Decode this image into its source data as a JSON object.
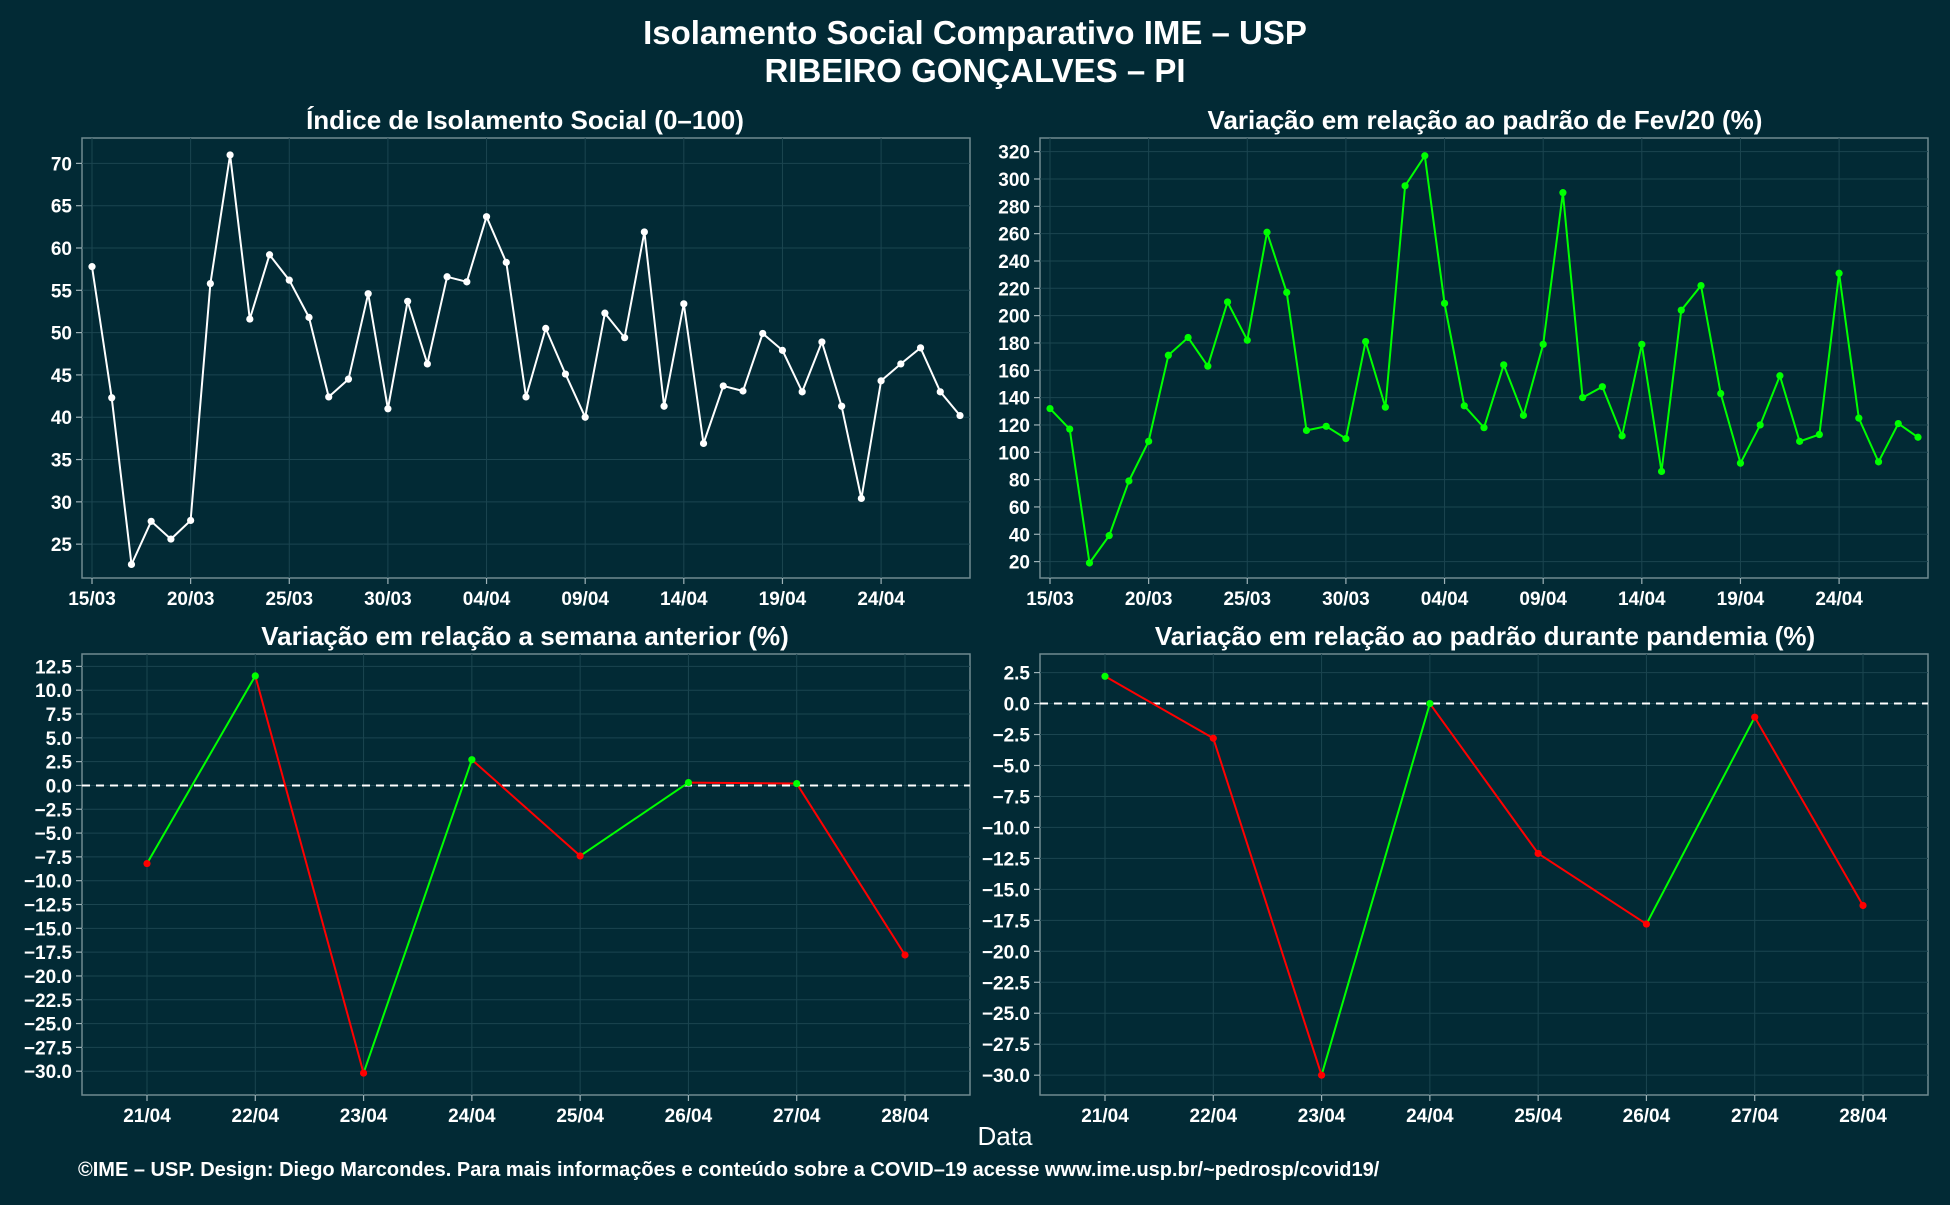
{
  "header": {
    "title": "Isolamento Social Comparativo IME – USP",
    "subtitle": "RIBEIRO GONÇALVES – PI"
  },
  "x_axis_label": "Data",
  "footer": "©IME – USP. Design: Diego Marcondes. Para mais informações e conteúdo sobre a COVID–19 acesse www.ime.usp.br/~pedrosp/covid19/",
  "colors": {
    "background": "#022a35",
    "grid": "#1b4550",
    "white_series": "#ffffff",
    "green": "#00ff00",
    "red": "#ff0000",
    "text": "#ffffff"
  },
  "chart_data": [
    {
      "id": "isolation-index",
      "type": "line",
      "title": "Índice de Isolamento Social (0–100)",
      "x": [
        "15/03",
        "16/03",
        "17/03",
        "18/03",
        "19/03",
        "20/03",
        "21/03",
        "22/03",
        "23/03",
        "24/03",
        "25/03",
        "26/03",
        "27/03",
        "28/03",
        "29/03",
        "30/03",
        "31/03",
        "01/04",
        "02/04",
        "03/04",
        "04/04",
        "05/04",
        "06/04",
        "07/04",
        "08/04",
        "09/04",
        "10/04",
        "11/04",
        "12/04",
        "13/04",
        "14/04",
        "15/04",
        "16/04",
        "17/04",
        "18/04",
        "19/04",
        "20/04",
        "21/04",
        "22/04",
        "23/04",
        "24/04",
        "25/04",
        "26/04",
        "27/04",
        "28/04"
      ],
      "x_tick_labels": [
        "15/03",
        "20/03",
        "25/03",
        "30/03",
        "04/04",
        "09/04",
        "14/04",
        "19/04",
        "24/04"
      ],
      "series": [
        {
          "values": [
            57.8,
            42.3,
            22.6,
            27.7,
            25.6,
            27.8,
            55.8,
            71.0,
            51.6,
            59.2,
            56.2,
            51.8,
            42.4,
            44.5,
            54.6,
            41.0,
            53.7,
            46.3,
            56.6,
            56.0,
            63.7,
            58.3,
            42.4,
            50.5,
            45.1,
            40.0,
            52.3,
            49.4,
            61.9,
            41.3,
            53.4,
            36.9,
            43.7,
            43.1,
            49.9,
            47.9,
            43.0,
            48.9,
            41.3,
            30.4,
            44.3,
            46.3,
            48.2,
            43.0,
            40.2
          ]
        }
      ],
      "ylim": [
        21,
        73
      ],
      "y_ticks": [
        25,
        30,
        35,
        40,
        45,
        50,
        55,
        60,
        65,
        70
      ]
    },
    {
      "id": "variation-feb20",
      "type": "line",
      "title": "Variação em relação ao padrão de Fev/20 (%)",
      "x": [
        "15/03",
        "16/03",
        "17/03",
        "18/03",
        "19/03",
        "20/03",
        "21/03",
        "22/03",
        "23/03",
        "24/03",
        "25/03",
        "26/03",
        "27/03",
        "28/03",
        "29/03",
        "30/03",
        "31/03",
        "01/04",
        "02/04",
        "03/04",
        "04/04",
        "05/04",
        "06/04",
        "07/04",
        "08/04",
        "09/04",
        "10/04",
        "11/04",
        "12/04",
        "13/04",
        "14/04",
        "15/04",
        "16/04",
        "17/04",
        "18/04",
        "19/04",
        "20/04",
        "21/04",
        "22/04",
        "23/04",
        "24/04",
        "25/04",
        "26/04",
        "27/04",
        "28/04"
      ],
      "x_tick_labels": [
        "15/03",
        "20/03",
        "25/03",
        "30/03",
        "04/04",
        "09/04",
        "14/04",
        "19/04",
        "24/04"
      ],
      "series": [
        {
          "values": [
            132,
            117,
            19,
            39,
            79,
            108,
            171,
            184,
            163,
            210,
            182,
            261,
            217,
            116,
            119,
            110,
            181,
            133,
            295,
            317,
            209,
            134,
            118,
            164,
            127,
            179,
            290,
            140,
            148,
            112,
            179,
            86,
            204,
            222,
            143,
            92,
            120,
            156,
            108,
            113,
            231,
            125,
            93,
            121,
            111
          ]
        }
      ],
      "ylim": [
        8,
        330
      ],
      "y_ticks": [
        20,
        40,
        60,
        80,
        100,
        120,
        140,
        160,
        180,
        200,
        220,
        240,
        260,
        280,
        300,
        320
      ]
    },
    {
      "id": "variation-previous-week",
      "type": "line",
      "title": "Variação em relação a semana anterior (%)",
      "x": [
        "21/04",
        "22/04",
        "23/04",
        "24/04",
        "25/04",
        "26/04",
        "27/04",
        "28/04"
      ],
      "x_tick_labels": [
        "21/04",
        "22/04",
        "23/04",
        "24/04",
        "25/04",
        "26/04",
        "27/04",
        "28/04"
      ],
      "series": [
        {
          "values": [
            -8.2,
            11.5,
            -30.2,
            2.7,
            -7.4,
            0.3,
            0.2,
            -17.8
          ]
        }
      ],
      "ylim": [
        -32.5,
        13.8
      ],
      "y_ticks": [
        12.5,
        10.0,
        7.5,
        5.0,
        2.5,
        0.0,
        -2.5,
        -5.0,
        -7.5,
        -10.0,
        -12.5,
        -15.0,
        -17.5,
        -20.0,
        -22.5,
        -25.0,
        -27.5,
        -30.0
      ],
      "zero_line": true
    },
    {
      "id": "variation-pandemic",
      "type": "line",
      "title": "Variação em relação ao padrão durante pandemia (%)",
      "x": [
        "21/04",
        "22/04",
        "23/04",
        "24/04",
        "25/04",
        "26/04",
        "27/04",
        "28/04"
      ],
      "x_tick_labels": [
        "21/04",
        "22/04",
        "23/04",
        "24/04",
        "25/04",
        "26/04",
        "27/04",
        "28/04"
      ],
      "series": [
        {
          "values": [
            2.2,
            -2.8,
            -30.0,
            0.0,
            -12.1,
            -17.8,
            -1.1,
            -16.3
          ]
        }
      ],
      "ylim": [
        -31.6,
        4.0
      ],
      "y_ticks": [
        2.5,
        0.0,
        -2.5,
        -5.0,
        -7.5,
        -10.0,
        -12.5,
        -15.0,
        -17.5,
        -20.0,
        -22.5,
        -25.0,
        -27.5,
        -30.0
      ],
      "zero_line": true
    }
  ]
}
